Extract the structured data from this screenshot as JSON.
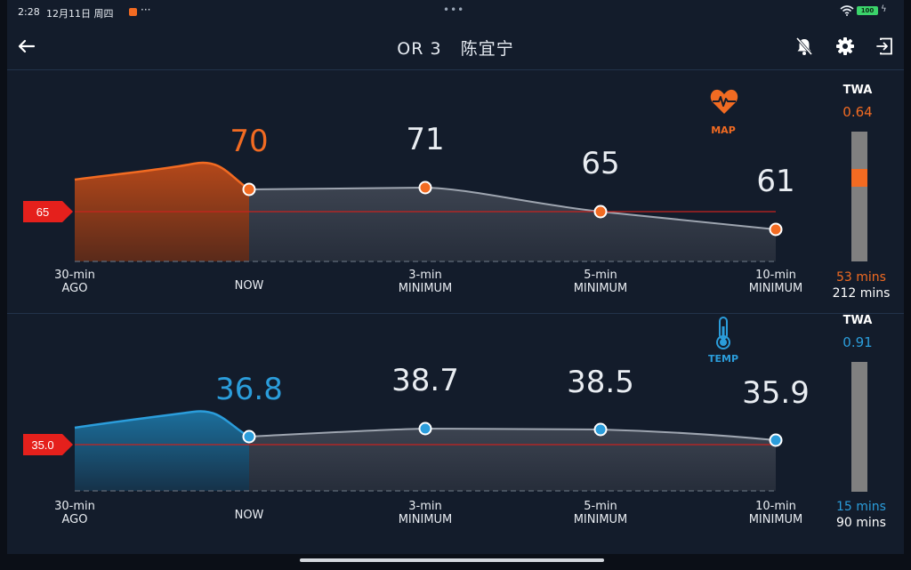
{
  "status_bar": {
    "time": "2:28",
    "date": "12月11日 周四",
    "more": "···",
    "battery": "100"
  },
  "header": {
    "title": "OR 3   陈宜宁"
  },
  "panels": [
    {
      "id": "map",
      "label": "MAP",
      "icon": "heart-pulse-icon",
      "accent": "#f26b22",
      "threshold": "65",
      "values": {
        "now": "70",
        "min3": "71",
        "min5": "65",
        "min10": "61"
      },
      "twa": {
        "label": "TWA",
        "value": "0.64",
        "level": 0.1,
        "mins_accent": "53 mins",
        "mins_total": "212 mins"
      },
      "xlabels": {
        "ago": "30-min\nAGO",
        "now": "NOW",
        "min3": "3-min\nMINIMUM",
        "min5": "5-min\nMINIMUM",
        "min10": "10-min\nMINIMUM"
      }
    },
    {
      "id": "temp",
      "label": "TEMP",
      "icon": "thermometer-icon",
      "accent": "#2b9ddb",
      "threshold": "35.0",
      "values": {
        "now": "36.8",
        "min3": "38.7",
        "min5": "38.5",
        "min10": "35.9"
      },
      "twa": {
        "label": "TWA",
        "value": "0.91",
        "level": 0,
        "mins_accent": "15 mins",
        "mins_total": "90 mins"
      },
      "xlabels": {
        "ago": "30-min\nAGO",
        "now": "NOW",
        "min3": "3-min\nMINIMUM",
        "min5": "5-min\nMINIMUM",
        "min10": "10-min\nMINIMUM"
      }
    }
  ]
}
